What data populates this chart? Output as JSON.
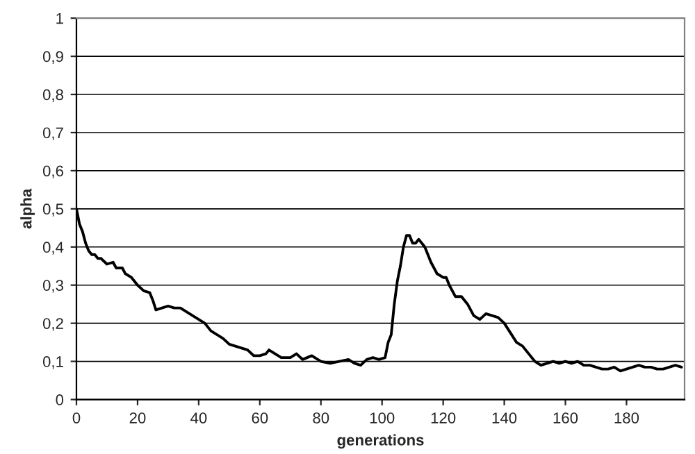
{
  "chart_data": {
    "type": "line",
    "xlabel": "generations",
    "ylabel": "alpha",
    "xlim": [
      0,
      199
    ],
    "xticks": [
      0,
      20,
      40,
      60,
      80,
      100,
      120,
      140,
      160,
      180
    ],
    "ylim": [
      0,
      1
    ],
    "yticks": [
      {
        "value": 0,
        "label": "0"
      },
      {
        "value": 0.1,
        "label": "0,1"
      },
      {
        "value": 0.2,
        "label": "0,2"
      },
      {
        "value": 0.3,
        "label": "0,3"
      },
      {
        "value": 0.4,
        "label": "0,4"
      },
      {
        "value": 0.5,
        "label": "0,5"
      },
      {
        "value": 0.6,
        "label": "0,6"
      },
      {
        "value": 0.7,
        "label": "0,7"
      },
      {
        "value": 0.8,
        "label": "0,8"
      },
      {
        "value": 0.9,
        "label": "0,9"
      },
      {
        "value": 1,
        "label": "1"
      }
    ],
    "grid": "y",
    "legend": false,
    "marker": "none",
    "line_style": "solid",
    "series": [
      {
        "color": "#000000",
        "x": [
          0,
          1,
          2,
          3,
          4,
          5,
          6,
          7,
          8,
          10,
          12,
          13,
          15,
          16,
          18,
          20,
          22,
          24,
          25,
          26,
          28,
          30,
          32,
          34,
          36,
          38,
          40,
          42,
          44,
          46,
          48,
          50,
          52,
          54,
          56,
          58,
          60,
          62,
          63,
          65,
          67,
          70,
          72,
          74,
          77,
          80,
          83,
          86,
          89,
          91,
          93,
          95,
          97,
          99,
          101,
          102,
          103,
          104,
          105,
          106,
          107,
          108,
          109,
          110,
          111,
          112,
          113,
          114,
          116,
          118,
          120,
          121,
          122,
          124,
          126,
          128,
          130,
          132,
          134,
          136,
          138,
          140,
          142,
          144,
          146,
          148,
          150,
          152,
          154,
          156,
          158,
          160,
          162,
          164,
          166,
          168,
          170,
          172,
          174,
          176,
          178,
          180,
          182,
          184,
          186,
          188,
          190,
          192,
          194,
          196,
          198
        ],
        "values": [
          0.5,
          0.46,
          0.44,
          0.41,
          0.39,
          0.38,
          0.38,
          0.37,
          0.37,
          0.355,
          0.36,
          0.345,
          0.345,
          0.33,
          0.32,
          0.3,
          0.285,
          0.28,
          0.26,
          0.235,
          0.24,
          0.245,
          0.24,
          0.24,
          0.23,
          0.22,
          0.21,
          0.2,
          0.18,
          0.17,
          0.16,
          0.145,
          0.14,
          0.135,
          0.13,
          0.115,
          0.115,
          0.12,
          0.13,
          0.12,
          0.11,
          0.11,
          0.12,
          0.105,
          0.115,
          0.1,
          0.095,
          0.1,
          0.105,
          0.095,
          0.09,
          0.105,
          0.11,
          0.105,
          0.11,
          0.15,
          0.17,
          0.25,
          0.31,
          0.35,
          0.4,
          0.43,
          0.43,
          0.41,
          0.41,
          0.42,
          0.41,
          0.4,
          0.36,
          0.33,
          0.32,
          0.32,
          0.3,
          0.27,
          0.27,
          0.25,
          0.22,
          0.21,
          0.225,
          0.22,
          0.215,
          0.2,
          0.175,
          0.15,
          0.14,
          0.12,
          0.1,
          0.09,
          0.095,
          0.1,
          0.095,
          0.1,
          0.095,
          0.1,
          0.09,
          0.09,
          0.085,
          0.08,
          0.08,
          0.085,
          0.075,
          0.08,
          0.085,
          0.09,
          0.085,
          0.085,
          0.08,
          0.08,
          0.085,
          0.09,
          0.085
        ]
      }
    ]
  }
}
